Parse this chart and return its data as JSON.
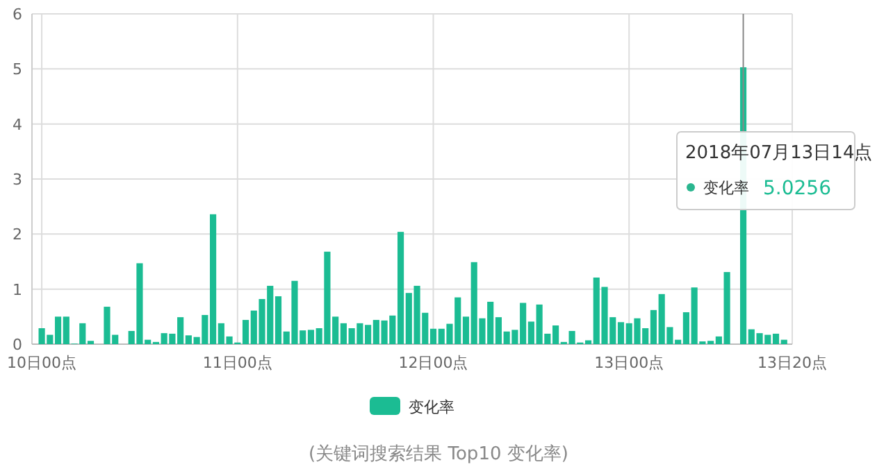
{
  "chart_data": {
    "type": "bar",
    "categories": [
      "10日00点",
      null,
      null,
      null,
      null,
      null,
      null,
      null,
      null,
      null,
      null,
      null,
      null,
      null,
      null,
      null,
      null,
      null,
      null,
      null,
      null,
      null,
      null,
      null,
      "11日00点",
      null,
      null,
      null,
      null,
      null,
      null,
      null,
      null,
      null,
      null,
      null,
      null,
      null,
      null,
      null,
      null,
      null,
      null,
      null,
      null,
      null,
      null,
      null,
      "12日00点",
      null,
      null,
      null,
      null,
      null,
      null,
      null,
      null,
      null,
      null,
      null,
      null,
      null,
      null,
      null,
      null,
      null,
      null,
      null,
      null,
      null,
      null,
      null,
      "13日00点",
      null,
      null,
      null,
      null,
      null,
      null,
      null,
      null,
      null,
      null,
      null,
      null,
      null,
      null,
      null,
      null,
      null,
      null,
      null,
      "13日20点"
    ],
    "series": [
      {
        "name": "变化率",
        "color": "#1bbc93",
        "values": [
          0.29,
          0.17,
          0.5,
          0.5,
          0.01,
          0.38,
          0.06,
          0,
          0.68,
          0.17,
          0,
          0.24,
          1.47,
          0.08,
          0.04,
          0.2,
          0.19,
          0.49,
          0.16,
          0.13,
          0.53,
          2.36,
          0.38,
          0.14,
          0.03,
          0.44,
          0.61,
          0.82,
          1.06,
          0.87,
          0.23,
          1.15,
          0.25,
          0.26,
          0.29,
          1.68,
          0.5,
          0.38,
          0.29,
          0.38,
          0.35,
          0.44,
          0.43,
          0.52,
          2.04,
          0.93,
          1.06,
          0.57,
          0.28,
          0.28,
          0.37,
          0.85,
          0.5,
          1.49,
          0.47,
          0.77,
          0.49,
          0.23,
          0.26,
          0.75,
          0.41,
          0.72,
          0.19,
          0.34,
          0.04,
          0.24,
          0.03,
          0.07,
          1.21,
          1.04,
          0.49,
          0.4,
          0.38,
          0.47,
          0.29,
          0.62,
          0.91,
          0.31,
          0.08,
          0.58,
          1.03,
          0.05,
          0.06,
          0.14,
          1.31,
          null,
          5.03,
          0.27,
          0.2,
          0.17,
          0.19,
          0.08,
          null
        ]
      }
    ],
    "ylim": [
      0,
      6
    ],
    "yticks": [
      0,
      1,
      2,
      3,
      4,
      5,
      6
    ],
    "grid": true,
    "legend": "bottom",
    "annotations": [
      "2018年07月13日14点",
      "变化率",
      "5.0256",
      "(关键词搜索结果 Top10 变化率)"
    ]
  }
}
